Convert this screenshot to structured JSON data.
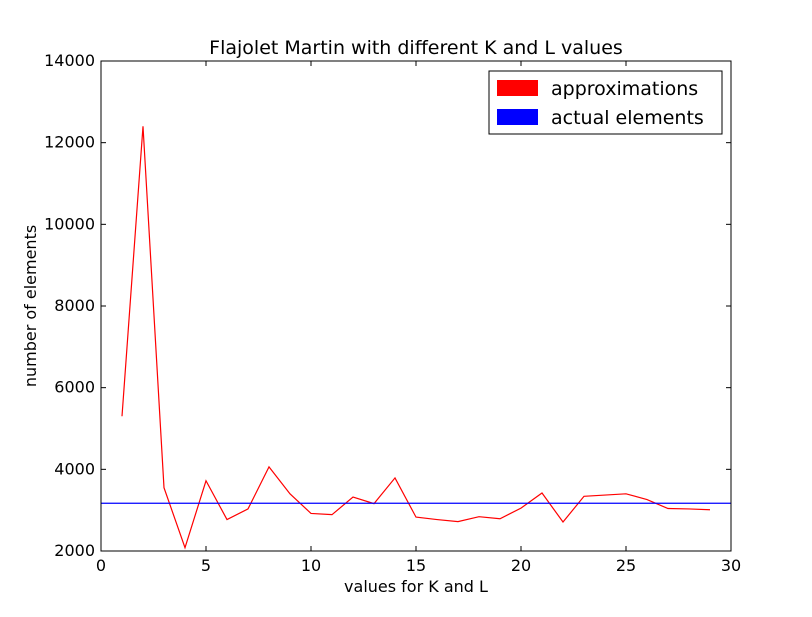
{
  "chart_data": {
    "type": "line",
    "title": "Flajolet Martin with different K and L values",
    "xlabel": "values for K and L",
    "ylabel": "number of elements",
    "xlim": [
      0,
      30
    ],
    "ylim": [
      2000,
      14000
    ],
    "xticks": [
      0,
      5,
      10,
      15,
      20,
      25,
      30
    ],
    "yticks": [
      2000,
      4000,
      6000,
      8000,
      10000,
      12000,
      14000
    ],
    "grid": false,
    "legend_position": "top-right",
    "series": [
      {
        "name": "approximations",
        "color": "#ff0000",
        "x": [
          1,
          2,
          3,
          4,
          5,
          6,
          7,
          8,
          9,
          10,
          11,
          12,
          13,
          14,
          15,
          16,
          17,
          18,
          19,
          20,
          21,
          22,
          23,
          24,
          25,
          26,
          27,
          28,
          29
        ],
        "y": [
          5300,
          12400,
          3550,
          2080,
          3720,
          2770,
          3030,
          4060,
          3400,
          2920,
          2890,
          3320,
          3160,
          3790,
          2830,
          2770,
          2720,
          2840,
          2790,
          3050,
          3420,
          2710,
          3340,
          3370,
          3400,
          3260,
          3040,
          3030,
          3010
        ]
      },
      {
        "name": "actual elements",
        "color": "#0000ff",
        "type": "hline",
        "y": 3170
      }
    ]
  }
}
